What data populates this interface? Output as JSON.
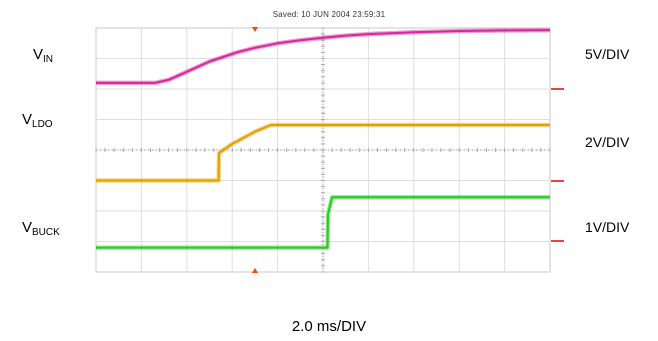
{
  "header": {
    "saved": "Saved: 10 JUN 2004 23:59:31"
  },
  "channels": [
    {
      "base": "V",
      "sub": "IN",
      "scale": "5V/DIV",
      "color": "#d6279c"
    },
    {
      "base": "V",
      "sub": "LDO",
      "scale": "2V/DIV",
      "color": "#e0a000"
    },
    {
      "base": "V",
      "sub": "BUCK",
      "scale": "1V/DIV",
      "color": "#22cc22"
    }
  ],
  "timebase": "2.0 ms/DIV",
  "markers": {
    "trigger_color": "#ff4400",
    "ground_ref_color": "#ee0000"
  },
  "chart_data": {
    "type": "line",
    "x_unit": "ms",
    "xlim": [
      0,
      20
    ],
    "ylim_div": [
      -4,
      4
    ],
    "grid": true,
    "series": [
      {
        "name": "VIN",
        "scale": "5V/DIV",
        "color": "#d6279c",
        "x": [
          0,
          2.6,
          3.2,
          3.8,
          4.4,
          5.0,
          5.6,
          6.2,
          7.0,
          8.0,
          9.0,
          10.0,
          11.0,
          12.0,
          14.0,
          16.0,
          18.0,
          20.0
        ],
        "y_div": [
          2.2,
          2.2,
          2.3,
          2.5,
          2.7,
          2.9,
          3.05,
          3.2,
          3.35,
          3.5,
          3.6,
          3.68,
          3.75,
          3.8,
          3.86,
          3.9,
          3.92,
          3.93
        ]
      },
      {
        "name": "VLDO",
        "scale": "2V/DIV",
        "color": "#e0a000",
        "x": [
          0,
          5.4,
          5.42,
          6.0,
          7.0,
          7.7,
          20.0
        ],
        "y_div": [
          -1.0,
          -1.0,
          -0.1,
          0.2,
          0.6,
          0.82,
          0.82
        ]
      },
      {
        "name": "VBUCK",
        "scale": "1V/DIV",
        "color": "#22cc22",
        "x": [
          0,
          10.2,
          10.22,
          10.4,
          20.0
        ],
        "y_div": [
          -3.2,
          -3.2,
          -2.1,
          -1.55,
          -1.55
        ]
      }
    ]
  }
}
